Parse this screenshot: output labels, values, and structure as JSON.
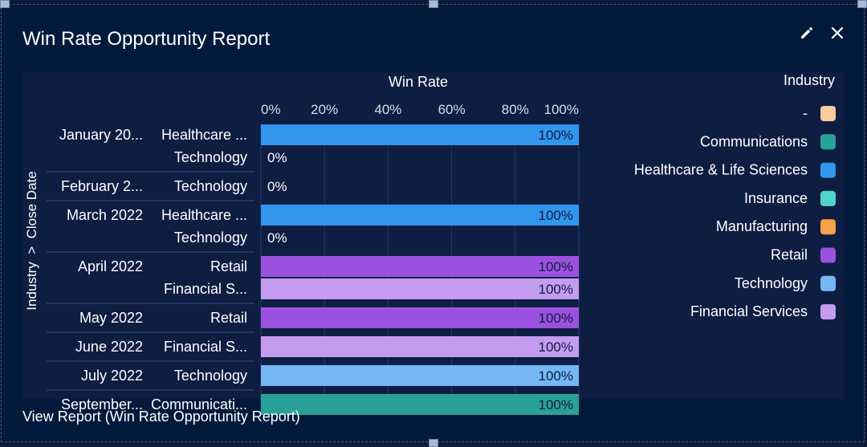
{
  "widget": {
    "title": "Win Rate Opportunity Report",
    "edit_icon": "pencil-icon",
    "close_icon": "close-icon",
    "footer_link": "View Report (Win Rate Opportunity Report)"
  },
  "chart_data": {
    "type": "bar",
    "orientation": "horizontal",
    "title": "Win Rate",
    "ylabel": "Industry  >  Close Date",
    "xlim": [
      0,
      100
    ],
    "x_ticks": [
      "0%",
      "20%",
      "40%",
      "60%",
      "80%",
      "100%"
    ],
    "grid": true,
    "legend_title": "Industry",
    "legend_position": "right",
    "legend": [
      {
        "name": "-",
        "color": "#f9cc9d"
      },
      {
        "name": "Communications",
        "color": "#2aa198"
      },
      {
        "name": "Healthcare & Life Sciences",
        "color": "#3296ed"
      },
      {
        "name": "Insurance",
        "color": "#4ed4cc"
      },
      {
        "name": "Manufacturing",
        "color": "#f7a14a"
      },
      {
        "name": "Retail",
        "color": "#9b51e0"
      },
      {
        "name": "Technology",
        "color": "#74b7f5"
      },
      {
        "name": "Financial Services",
        "color": "#c39cf0"
      }
    ],
    "groups": [
      {
        "date": "January 20...",
        "rows": [
          {
            "industry": "Healthcare ...",
            "value": 100,
            "label": "100%",
            "color": "#3296ed"
          },
          {
            "industry": "Technology",
            "value": 0,
            "label": "0%",
            "color": "#74b7f5"
          }
        ]
      },
      {
        "date": "February 2...",
        "rows": [
          {
            "industry": "Technology",
            "value": 0,
            "label": "0%",
            "color": "#74b7f5"
          }
        ]
      },
      {
        "date": "March 2022",
        "rows": [
          {
            "industry": "Healthcare ...",
            "value": 100,
            "label": "100%",
            "color": "#3296ed"
          },
          {
            "industry": "Technology",
            "value": 0,
            "label": "0%",
            "color": "#74b7f5"
          }
        ]
      },
      {
        "date": "April 2022",
        "rows": [
          {
            "industry": "Retail",
            "value": 100,
            "label": "100%",
            "color": "#9b51e0"
          },
          {
            "industry": "Financial S...",
            "value": 100,
            "label": "100%",
            "color": "#c39cf0"
          }
        ]
      },
      {
        "date": "May 2022",
        "rows": [
          {
            "industry": "Retail",
            "value": 100,
            "label": "100%",
            "color": "#9b51e0"
          }
        ]
      },
      {
        "date": "June 2022",
        "rows": [
          {
            "industry": "Financial S...",
            "value": 100,
            "label": "100%",
            "color": "#c39cf0"
          }
        ]
      },
      {
        "date": "July 2022",
        "rows": [
          {
            "industry": "Technology",
            "value": 100,
            "label": "100%",
            "color": "#74b7f5"
          }
        ]
      },
      {
        "date": "September...",
        "rows": [
          {
            "industry": "Communicati...",
            "value": 100,
            "label": "100%",
            "color": "#2aa198"
          }
        ]
      }
    ]
  }
}
